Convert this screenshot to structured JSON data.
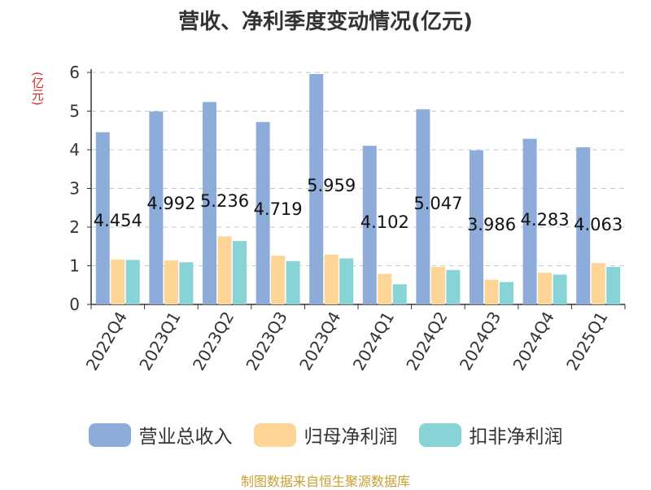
{
  "chart_data": {
    "type": "bar",
    "title": "营收、净利季度变动情况(亿元)",
    "ylabel": "(亿元)",
    "ylim": [
      0,
      6
    ],
    "yticks": [
      0,
      1,
      2,
      3,
      4,
      5,
      6
    ],
    "grid": true,
    "legend_position": "bottom",
    "categories": [
      "2022Q4",
      "2023Q1",
      "2023Q2",
      "2023Q3",
      "2023Q4",
      "2024Q1",
      "2024Q2",
      "2024Q3",
      "2024Q4",
      "2025Q1"
    ],
    "series": [
      {
        "name": "营业总收入",
        "color": "#8eacd9",
        "values": [
          4.454,
          4.992,
          5.236,
          4.719,
          5.959,
          4.102,
          5.047,
          3.986,
          4.283,
          4.063
        ],
        "data_labels": [
          "4.454",
          "4.992",
          "5.236",
          "4.719",
          "5.959",
          "4.102",
          "5.047",
          "3.986",
          "4.283",
          "4.063"
        ]
      },
      {
        "name": "归母净利润",
        "color": "#fcd597",
        "values": [
          1.16,
          1.14,
          1.76,
          1.26,
          1.29,
          0.79,
          0.97,
          0.64,
          0.82,
          1.07
        ]
      },
      {
        "name": "扣非净利润",
        "color": "#87d3d5",
        "values": [
          1.15,
          1.09,
          1.64,
          1.12,
          1.19,
          0.52,
          0.89,
          0.58,
          0.77,
          0.97
        ]
      }
    ]
  },
  "source": "制图数据来自恒生聚源数据库"
}
